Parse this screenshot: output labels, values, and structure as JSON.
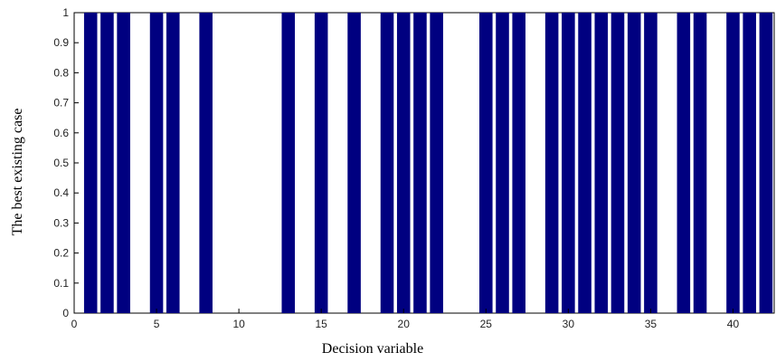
{
  "chart_data": {
    "type": "bar",
    "title": "",
    "xlabel": "Decision variable",
    "ylabel": "The best existing case",
    "xlim": [
      0,
      42.5
    ],
    "ylim": [
      0,
      1
    ],
    "xticks": [
      0,
      5,
      10,
      15,
      20,
      25,
      30,
      35,
      40
    ],
    "yticks": [
      0,
      0.1,
      0.2,
      0.3,
      0.4,
      0.5,
      0.6,
      0.7,
      0.8,
      0.9,
      1
    ],
    "ytick_labels": [
      "0",
      "0.1",
      "0.2",
      "0.3",
      "0.4",
      "0.5",
      "0.6",
      "0.7",
      "0.8",
      "0.9",
      "1"
    ],
    "grid": false,
    "bar_color": "#000080",
    "x": [
      1,
      2,
      3,
      4,
      5,
      6,
      7,
      8,
      9,
      10,
      11,
      12,
      13,
      14,
      15,
      16,
      17,
      18,
      19,
      20,
      21,
      22,
      23,
      24,
      25,
      26,
      27,
      28,
      29,
      30,
      31,
      32,
      33,
      34,
      35,
      36,
      37,
      38,
      39,
      40,
      41,
      42
    ],
    "values": [
      1,
      1,
      1,
      0,
      1,
      1,
      0,
      1,
      0,
      0,
      0,
      0,
      1,
      0,
      1,
      0,
      1,
      0,
      1,
      1,
      1,
      1,
      0,
      0,
      1,
      1,
      1,
      0,
      1,
      1,
      1,
      1,
      1,
      1,
      1,
      0,
      1,
      1,
      0,
      1,
      1,
      1
    ]
  }
}
